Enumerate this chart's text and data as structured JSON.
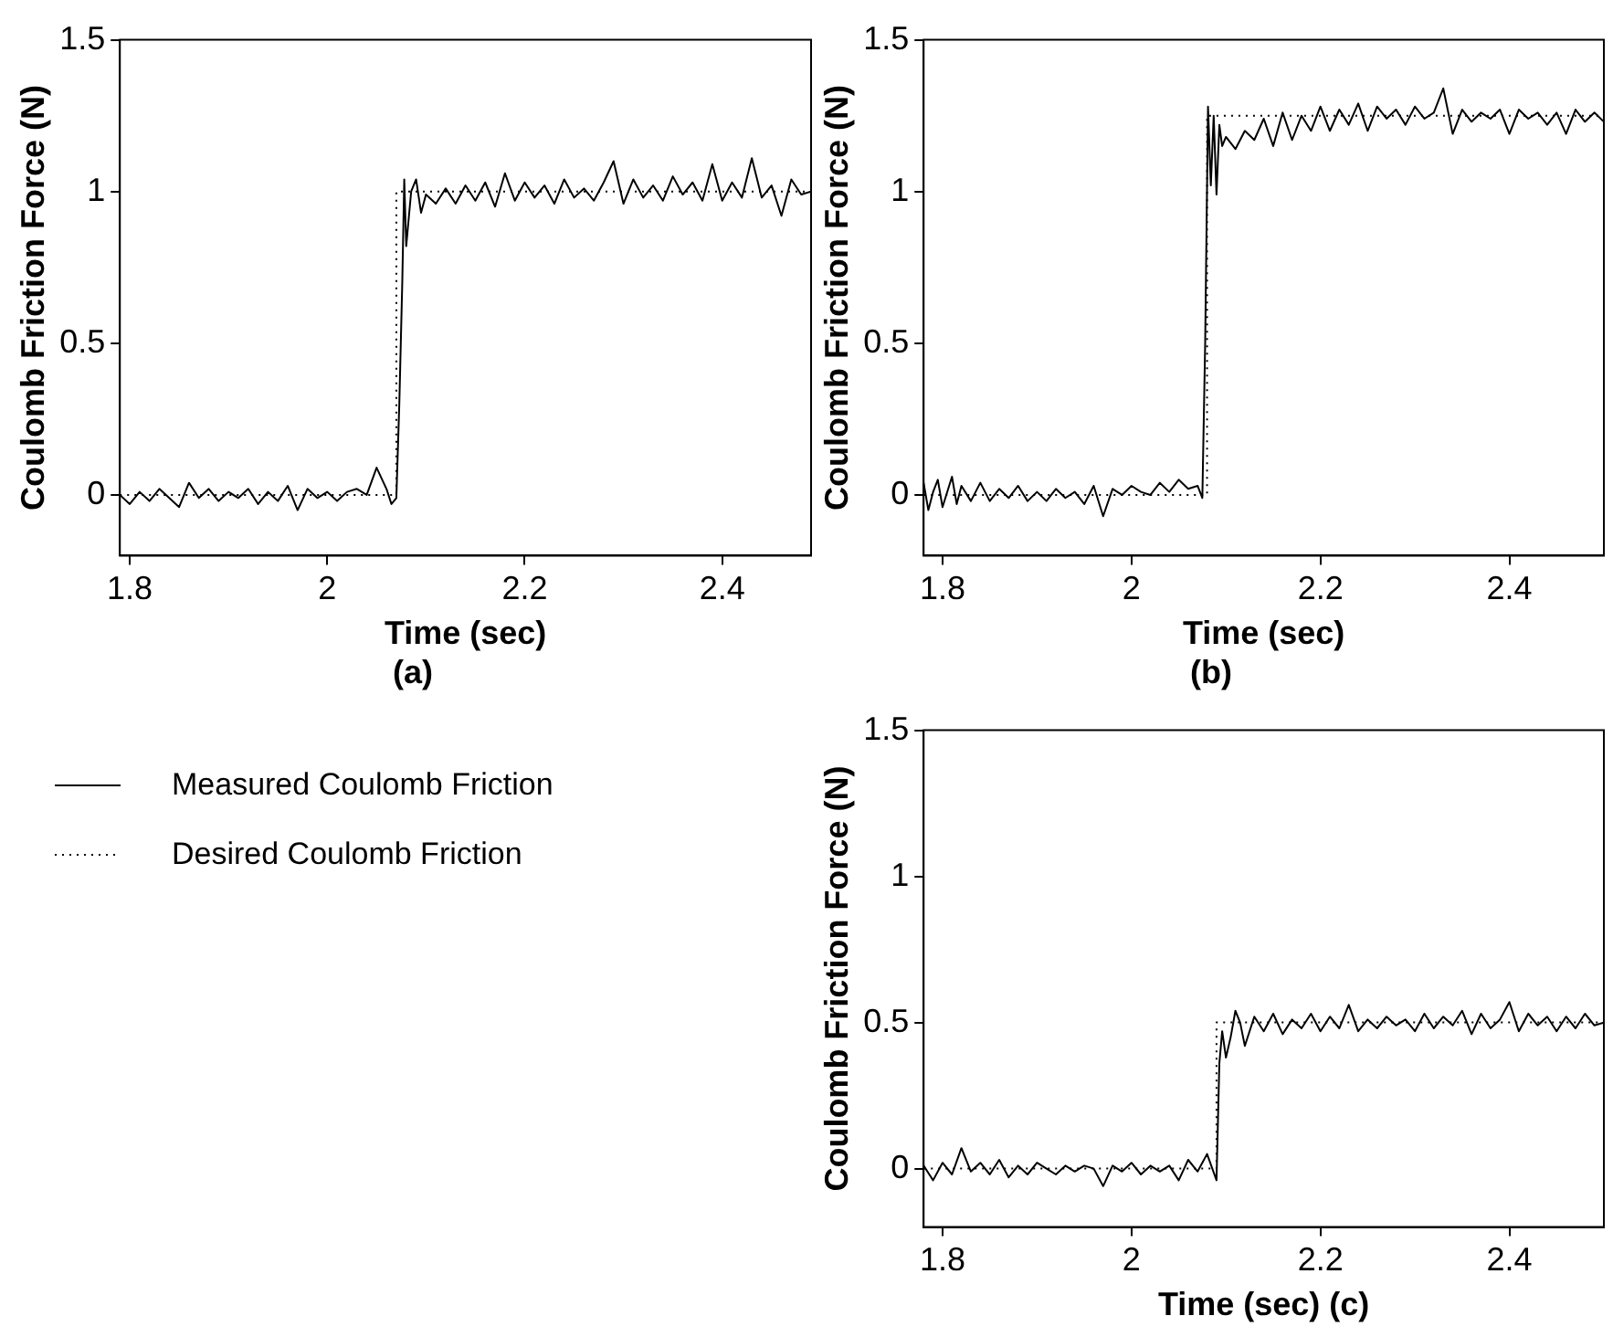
{
  "chart_data": [
    {
      "type": "line",
      "xlabel": "Time (sec)",
      "ylabel": "Coulomb Friction Force (N)",
      "annotations": [
        "(a)"
      ],
      "xlim": [
        1.79,
        2.49
      ],
      "ylim": [
        -0.2,
        1.5
      ],
      "xticks": [
        1.8,
        2,
        2.2,
        2.4
      ],
      "yticks": [
        0,
        0.5,
        1,
        1.5
      ],
      "grid": false,
      "legend": "bottom",
      "marker": "none",
      "series": [
        {
          "name": "Measured Coulomb Friction",
          "color": "#000000",
          "line_style": "solid",
          "x": [
            1.79,
            1.8,
            1.81,
            1.82,
            1.83,
            1.84,
            1.85,
            1.86,
            1.87,
            1.88,
            1.89,
            1.9,
            1.91,
            1.92,
            1.93,
            1.94,
            1.95,
            1.96,
            1.97,
            1.98,
            1.99,
            2.0,
            2.01,
            2.02,
            2.03,
            2.04,
            2.05,
            2.06,
            2.065,
            2.07,
            2.073,
            2.076,
            2.078,
            2.08,
            2.085,
            2.09,
            2.095,
            2.1,
            2.11,
            2.12,
            2.13,
            2.14,
            2.15,
            2.16,
            2.17,
            2.18,
            2.19,
            2.2,
            2.21,
            2.22,
            2.23,
            2.24,
            2.25,
            2.26,
            2.27,
            2.28,
            2.29,
            2.3,
            2.31,
            2.32,
            2.33,
            2.34,
            2.35,
            2.36,
            2.37,
            2.38,
            2.39,
            2.4,
            2.41,
            2.42,
            2.43,
            2.44,
            2.45,
            2.46,
            2.47,
            2.48,
            2.49
          ],
          "values": [
            0,
            -0.03,
            0.01,
            -0.02,
            0.02,
            -0.01,
            -0.04,
            0.04,
            -0.01,
            0.02,
            -0.02,
            0.01,
            -0.01,
            0.02,
            -0.03,
            0.01,
            -0.02,
            0.03,
            -0.05,
            0.02,
            -0.01,
            0.01,
            -0.02,
            0.01,
            0.02,
            0,
            0.09,
            0.02,
            -0.03,
            -0.01,
            0.3,
            0.7,
            1.04,
            0.82,
            1.0,
            1.04,
            0.93,
            0.99,
            0.96,
            1.01,
            0.96,
            1.02,
            0.97,
            1.03,
            0.95,
            1.06,
            0.97,
            1.03,
            0.98,
            1.02,
            0.96,
            1.04,
            0.98,
            1.01,
            0.97,
            1.03,
            1.1,
            0.96,
            1.04,
            0.98,
            1.02,
            0.97,
            1.05,
            0.99,
            1.03,
            0.97,
            1.09,
            0.97,
            1.03,
            0.98,
            1.11,
            0.98,
            1.02,
            0.92,
            1.04,
            0.99,
            1.0
          ]
        },
        {
          "name": "Desired Coulomb Friction",
          "color": "#000000",
          "line_style": "dotted",
          "x": [
            1.79,
            2.07,
            2.07,
            2.49
          ],
          "values": [
            0,
            0,
            1,
            1
          ]
        }
      ]
    },
    {
      "type": "line",
      "xlabel": "Time (sec)",
      "ylabel": "Coulomb Friction Force (N)",
      "annotations": [
        "(b)"
      ],
      "xlim": [
        1.78,
        2.5
      ],
      "ylim": [
        -0.2,
        1.5
      ],
      "xticks": [
        1.8,
        2,
        2.2,
        2.4
      ],
      "yticks": [
        0,
        0.5,
        1,
        1.5
      ],
      "grid": false,
      "marker": "none",
      "series": [
        {
          "color": "#000000",
          "line_style": "solid",
          "x": [
            1.78,
            1.785,
            1.79,
            1.795,
            1.8,
            1.81,
            1.815,
            1.82,
            1.83,
            1.84,
            1.85,
            1.86,
            1.87,
            1.88,
            1.89,
            1.9,
            1.91,
            1.92,
            1.93,
            1.94,
            1.95,
            1.96,
            1.97,
            1.98,
            1.99,
            2.0,
            2.01,
            2.02,
            2.03,
            2.04,
            2.05,
            2.06,
            2.07,
            2.075,
            2.078,
            2.081,
            2.084,
            2.087,
            2.09,
            2.093,
            2.096,
            2.1,
            2.11,
            2.12,
            2.13,
            2.14,
            2.15,
            2.16,
            2.17,
            2.18,
            2.19,
            2.2,
            2.21,
            2.22,
            2.23,
            2.24,
            2.25,
            2.26,
            2.27,
            2.28,
            2.29,
            2.3,
            2.31,
            2.32,
            2.33,
            2.34,
            2.35,
            2.36,
            2.37,
            2.38,
            2.39,
            2.4,
            2.41,
            2.42,
            2.43,
            2.44,
            2.45,
            2.46,
            2.47,
            2.48,
            2.49,
            2.5
          ],
          "values": [
            0.04,
            -0.05,
            0.01,
            0.05,
            -0.04,
            0.06,
            -0.03,
            0.03,
            -0.02,
            0.04,
            -0.02,
            0.02,
            -0.01,
            0.03,
            -0.02,
            0.01,
            -0.02,
            0.02,
            -0.01,
            0.01,
            -0.03,
            0.03,
            -0.07,
            0.02,
            0.0,
            0.03,
            0.01,
            0.0,
            0.04,
            0.01,
            0.05,
            0.02,
            0.03,
            -0.01,
            0.5,
            1.28,
            1.02,
            1.25,
            0.99,
            1.22,
            1.15,
            1.18,
            1.14,
            1.2,
            1.17,
            1.24,
            1.15,
            1.26,
            1.17,
            1.25,
            1.2,
            1.28,
            1.2,
            1.27,
            1.22,
            1.29,
            1.2,
            1.28,
            1.24,
            1.27,
            1.22,
            1.28,
            1.24,
            1.26,
            1.34,
            1.19,
            1.27,
            1.23,
            1.26,
            1.24,
            1.27,
            1.19,
            1.27,
            1.24,
            1.26,
            1.22,
            1.26,
            1.19,
            1.27,
            1.23,
            1.26,
            1.23
          ]
        },
        {
          "color": "#000000",
          "line_style": "dotted",
          "x": [
            1.78,
            2.08,
            2.08,
            2.5
          ],
          "values": [
            0,
            0,
            1.25,
            1.25
          ]
        }
      ]
    },
    {
      "type": "line",
      "xlabel": "Time (sec) (c)",
      "ylabel": "Coulomb Friction Force (N)",
      "xlim": [
        1.78,
        2.5
      ],
      "ylim": [
        -0.2,
        1.5
      ],
      "xticks": [
        1.8,
        2,
        2.2,
        2.4
      ],
      "yticks": [
        0,
        0.5,
        1,
        1.5
      ],
      "grid": false,
      "marker": "none",
      "series": [
        {
          "color": "#000000",
          "line_style": "solid",
          "x": [
            1.78,
            1.79,
            1.8,
            1.81,
            1.82,
            1.83,
            1.84,
            1.85,
            1.86,
            1.87,
            1.88,
            1.89,
            1.9,
            1.91,
            1.92,
            1.93,
            1.94,
            1.95,
            1.96,
            1.97,
            1.98,
            1.99,
            2.0,
            2.01,
            2.02,
            2.03,
            2.04,
            2.05,
            2.06,
            2.07,
            2.08,
            2.09,
            2.093,
            2.096,
            2.1,
            2.105,
            2.11,
            2.115,
            2.12,
            2.13,
            2.14,
            2.15,
            2.16,
            2.17,
            2.18,
            2.19,
            2.2,
            2.21,
            2.22,
            2.23,
            2.24,
            2.25,
            2.26,
            2.27,
            2.28,
            2.29,
            2.3,
            2.31,
            2.32,
            2.33,
            2.34,
            2.35,
            2.36,
            2.37,
            2.38,
            2.39,
            2.4,
            2.41,
            2.42,
            2.43,
            2.44,
            2.45,
            2.46,
            2.47,
            2.48,
            2.49,
            2.5
          ],
          "values": [
            0.01,
            -0.04,
            0.02,
            -0.02,
            0.07,
            -0.01,
            0.02,
            -0.02,
            0.03,
            -0.03,
            0.01,
            -0.02,
            0.02,
            0.0,
            -0.02,
            0.01,
            -0.01,
            0.01,
            0.0,
            -0.06,
            0.01,
            -0.01,
            0.02,
            -0.02,
            0.01,
            -0.01,
            0.01,
            -0.04,
            0.03,
            -0.01,
            0.05,
            -0.04,
            0.36,
            0.47,
            0.38,
            0.45,
            0.54,
            0.5,
            0.42,
            0.52,
            0.47,
            0.53,
            0.46,
            0.51,
            0.48,
            0.53,
            0.47,
            0.52,
            0.48,
            0.56,
            0.47,
            0.51,
            0.48,
            0.52,
            0.49,
            0.51,
            0.47,
            0.53,
            0.48,
            0.52,
            0.49,
            0.54,
            0.46,
            0.53,
            0.48,
            0.51,
            0.57,
            0.47,
            0.53,
            0.49,
            0.52,
            0.47,
            0.52,
            0.48,
            0.53,
            0.49,
            0.5
          ]
        },
        {
          "color": "#000000",
          "line_style": "dotted",
          "x": [
            1.78,
            2.09,
            2.09,
            2.5
          ],
          "values": [
            0,
            0,
            0.5,
            0.5
          ]
        }
      ]
    }
  ]
}
